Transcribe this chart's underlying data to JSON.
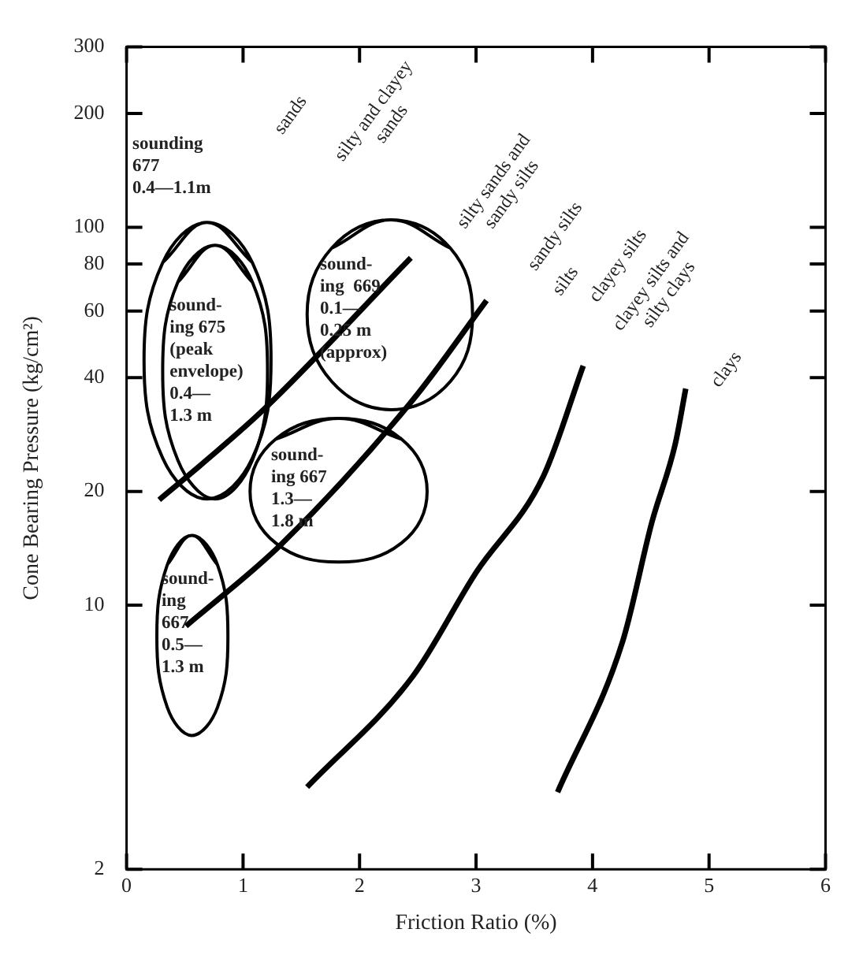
{
  "chart_data": {
    "type": "line",
    "xlabel": "Friction Ratio (%)",
    "ylabel": "Cone Bearing Pressure (kg/cm²)",
    "xlim": [
      0,
      6
    ],
    "xticks": [
      0,
      1,
      2,
      3,
      4,
      5,
      6
    ],
    "ylim": [
      2,
      300
    ],
    "yticks": [
      2,
      10,
      20,
      40,
      60,
      80,
      100,
      200,
      300
    ],
    "log": "y",
    "grid": false,
    "legend": false,
    "marker": "none",
    "line_style": "solid",
    "series": [
      {
        "color": "#000000",
        "x": [
          0.28,
          0.7,
          1.18,
          2.44
        ],
        "values": [
          19,
          24.4,
          33,
          83
        ]
      },
      {
        "color": "#000000",
        "x": [
          0.51,
          1.33,
          2.46,
          3.09
        ],
        "values": [
          8.8,
          14.5,
          35,
          64
        ]
      },
      {
        "color": "#000000",
        "x": [
          1.55,
          2.46,
          3.0,
          3.58,
          3.92
        ],
        "values": [
          3.3,
          6.5,
          12.2,
          22,
          43
        ]
      },
      {
        "color": "#000000",
        "x": [
          3.7,
          4.26,
          4.51,
          4.71,
          4.8
        ],
        "values": [
          3.2,
          8.05,
          16.6,
          26.7,
          37.4
        ]
      },
      {
        "color": "#000000",
        "x": [
          0.69,
          1.08,
          1.24,
          1.08,
          0.69,
          0.31,
          0.15,
          0.31,
          0.69
        ],
        "values": [
          103,
          80.6,
          44.4,
          24.5,
          19.1,
          24.5,
          44.4,
          80.6,
          103
        ]
      },
      {
        "color": "#000000",
        "x": [
          0.76,
          1.08,
          1.21,
          1.08,
          0.76,
          0.44,
          0.31,
          0.44,
          0.76
        ],
        "values": [
          89.6,
          71.6,
          41.6,
          24.2,
          19.1,
          24.2,
          41.6,
          71.6,
          89.6
        ]
      },
      {
        "color": "#000000",
        "x": [
          2.27,
          2.78,
          2.97,
          2.78,
          2.27,
          1.76,
          1.55,
          1.76,
          2.27
        ],
        "values": [
          104.6,
          88,
          58.8,
          39.1,
          32.9,
          39.1,
          58.8,
          88,
          104.6
        ]
      },
      {
        "color": "#000000",
        "x": [
          1.82,
          2.36,
          2.58,
          2.36,
          1.82,
          1.28,
          1.06,
          1.28,
          1.82
        ],
        "values": [
          31.2,
          27.5,
          20,
          14.6,
          13,
          14.6,
          20,
          27.5,
          31.2
        ]
      },
      {
        "color": "#000000",
        "x": [
          0.56,
          0.78,
          0.87,
          0.78,
          0.56,
          0.35,
          0.26,
          0.35,
          0.56
        ],
        "values": [
          15.3,
          12.8,
          8.27,
          5.36,
          4.52,
          5.36,
          8.27,
          12.8,
          15.3
        ]
      }
    ],
    "annotations": [
      "sands",
      "silty and clayey\nsands",
      "silty sands and\nsandy silts",
      "sandy silts",
      "silts",
      "clayey silts",
      "clayey silts and\nsilty clays",
      "clays",
      "sounding\n677\n0.4—1.1m",
      "sound-\ning 675\n(peak\nenvelope)\n0.4—\n1.3 m",
      "sound-\ning  669\n0.1—\n0.25 m\n(approx)",
      "sound-\ning 667\n1.3—\n1.8 m",
      "sound-\ning\n667\n0.5—\n1.3 m"
    ]
  }
}
